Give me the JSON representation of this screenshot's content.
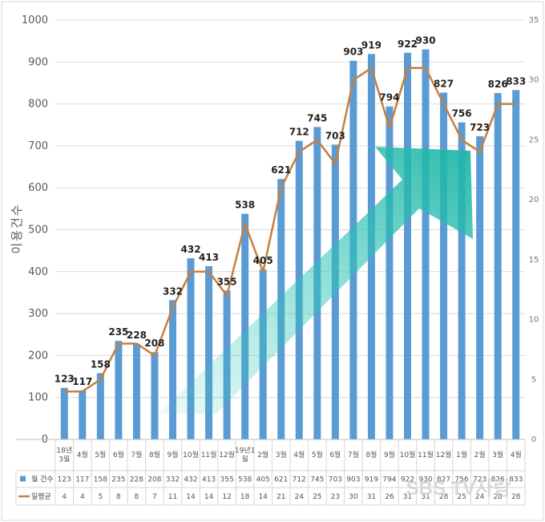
{
  "chart_data": {
    "type": "bar",
    "ylabel": "이용건수",
    "ylim": [
      0,
      1000
    ],
    "y2lim": [
      0,
      35
    ],
    "yticks": [
      0,
      100,
      200,
      300,
      400,
      500,
      600,
      700,
      800,
      900,
      1000
    ],
    "y2ticks": [
      0,
      5,
      10,
      15,
      20,
      25,
      30,
      35
    ],
    "categories": [
      [
        "18년",
        "3월"
      ],
      [
        "4월"
      ],
      [
        "5월"
      ],
      [
        "6월"
      ],
      [
        "7월"
      ],
      [
        "8월"
      ],
      [
        "9월"
      ],
      [
        "10월"
      ],
      [
        "11월"
      ],
      [
        "12월"
      ],
      [
        "19년1",
        "월"
      ],
      [
        "2월"
      ],
      [
        "3월"
      ],
      [
        "4월"
      ],
      [
        "5월"
      ],
      [
        "6월"
      ],
      [
        "7월"
      ],
      [
        "8월"
      ],
      [
        "9월"
      ],
      [
        "10월"
      ],
      [
        "11월"
      ],
      [
        "12월"
      ],
      [
        "1월"
      ],
      [
        "2월"
      ],
      [
        "3월"
      ],
      [
        "4월"
      ]
    ],
    "series": [
      {
        "name": "월 건수",
        "type": "bar",
        "axis": "left",
        "color": "#5b9bd5",
        "values": [
          123,
          117,
          158,
          235,
          228,
          208,
          332,
          432,
          413,
          355,
          538,
          405,
          621,
          712,
          745,
          703,
          903,
          919,
          794,
          922,
          930,
          827,
          756,
          723,
          826,
          833
        ]
      },
      {
        "name": "일평균",
        "type": "line",
        "axis": "right",
        "color": "#c5803f",
        "values": [
          4,
          4,
          5,
          8,
          8,
          7,
          11,
          14,
          14,
          12,
          18,
          14,
          21,
          24,
          25,
          23,
          30,
          31,
          26,
          31,
          31,
          28,
          25,
          24,
          28,
          28
        ]
      }
    ],
    "annotation": {
      "type": "trend-arrow",
      "color": "#2ec4b6"
    },
    "watermark": "SBS TV사람"
  }
}
